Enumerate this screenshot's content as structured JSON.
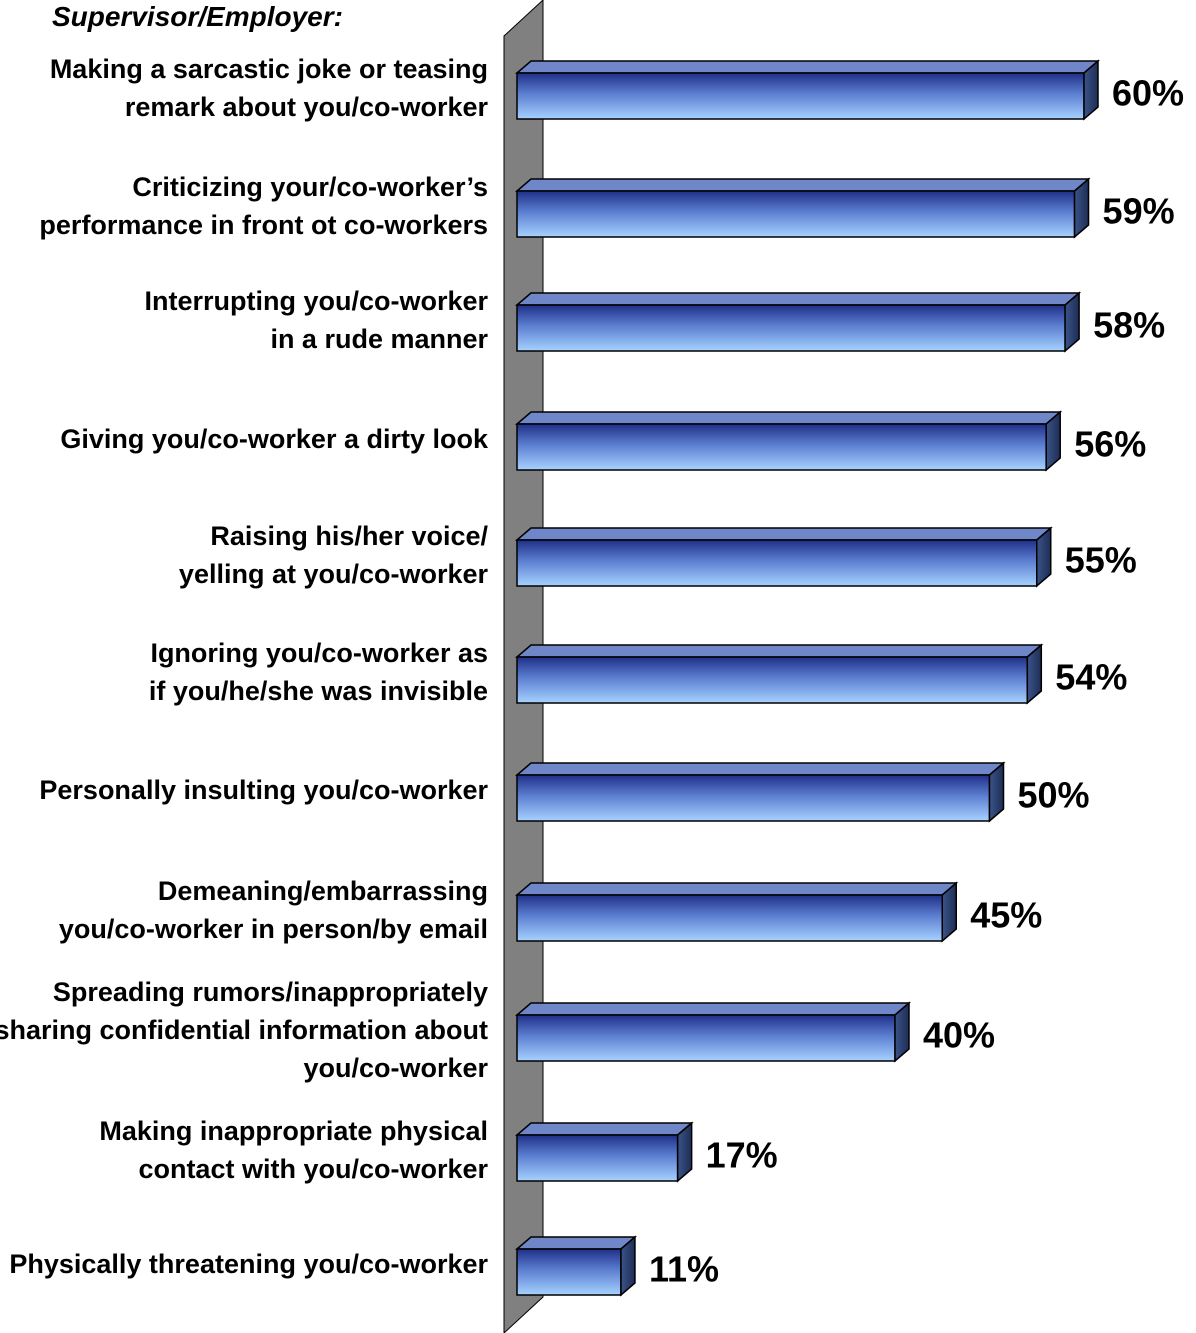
{
  "chart_data": {
    "type": "bar",
    "orientation": "horizontal",
    "title": "Supervisor/Employer:",
    "categories": [
      [
        "Making a sarcastic joke or teasing",
        "remark about you/co-worker"
      ],
      [
        "Criticizing your/co-worker’s",
        "performance in front ot co-workers"
      ],
      [
        "Interrupting you/co-worker",
        "in a rude manner"
      ],
      [
        "Giving you/co-worker a dirty look"
      ],
      [
        "Raising his/her voice/",
        "yelling at you/co-worker"
      ],
      [
        "Ignoring you/co-worker as",
        "if you/he/she was invisible"
      ],
      [
        "Personally insulting you/co-worker"
      ],
      [
        "Demeaning/embarrassing",
        "you/co-worker in person/by email"
      ],
      [
        "Spreading rumors/inappropriately",
        "sharing confidential information about",
        "you/co-worker"
      ],
      [
        "Making inappropriate physical",
        "contact with you/co-worker"
      ],
      [
        "Physically threatening you/co-worker"
      ]
    ],
    "values": [
      60,
      59,
      58,
      56,
      55,
      54,
      50,
      45,
      40,
      17,
      11
    ],
    "value_labels": [
      "60%",
      "59%",
      "58%",
      "56%",
      "55%",
      "54%",
      "50%",
      "45%",
      "40%",
      "17%",
      "11%"
    ],
    "unit": "%",
    "xlabel": "",
    "ylabel": "",
    "xlim": [
      0,
      60
    ],
    "grid": false,
    "legend": "none",
    "colors": {
      "bar_top": "#1f2f88",
      "bar_bottom": "#a6d2ff",
      "bar_cap": "#2a3f6a",
      "bar_top_face": "#6f86c8",
      "axis_wall": "#808080"
    }
  }
}
